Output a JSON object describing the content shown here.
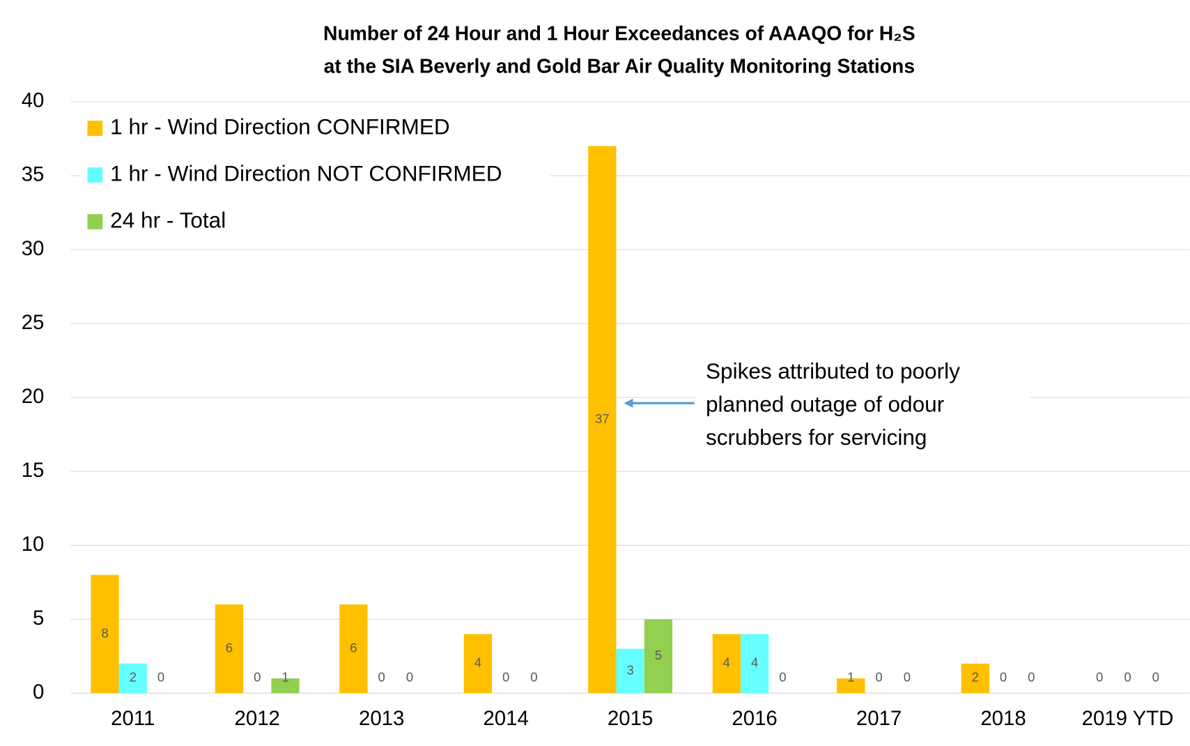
{
  "chart_data": {
    "type": "bar",
    "title": [
      "Number of 24 Hour and 1 Hour Exceedances of AAAQO for H₂S",
      "at the SIA Beverly and Gold Bar Air Quality Monitoring Stations"
    ],
    "categories": [
      "2011",
      "2012",
      "2013",
      "2014",
      "2015",
      "2016",
      "2017",
      "2018",
      "2019 YTD"
    ],
    "series": [
      {
        "name": "1 hr - Wind Direction CONFIRMED",
        "color": "#FFC000",
        "values": [
          8,
          6,
          6,
          4,
          37,
          4,
          1,
          2,
          0
        ]
      },
      {
        "name": "1 hr - Wind Direction NOT CONFIRMED",
        "color": "#66FFFF",
        "values": [
          2,
          0,
          0,
          0,
          3,
          4,
          0,
          0,
          0
        ]
      },
      {
        "name": "24 hr - Total",
        "color": "#92D050",
        "values": [
          0,
          1,
          0,
          0,
          5,
          0,
          0,
          0,
          0
        ]
      }
    ],
    "ylim": [
      0,
      40
    ],
    "yticks": [
      0,
      5,
      10,
      15,
      20,
      25,
      30,
      35,
      40
    ],
    "grid": true,
    "legend": "top-left",
    "annotation": [
      "Spikes attributed to poorly",
      "planned outage of odour",
      "scrubbers for servicing"
    ]
  }
}
